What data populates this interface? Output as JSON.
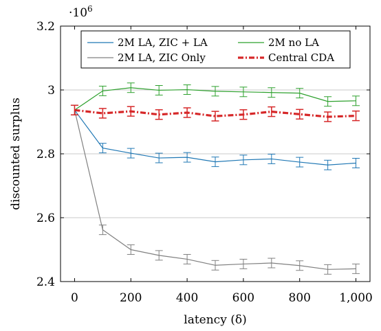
{
  "chart_data": {
    "type": "line",
    "xlabel": "latency (δ)",
    "ylabel": "discounted surplus",
    "y_scale_label": "·10",
    "y_scale_exponent": "6",
    "x_ticks": [
      0,
      200,
      400,
      600,
      800,
      1000
    ],
    "x_tick_labels": [
      "0",
      "200",
      "400",
      "600",
      "800",
      "1,000"
    ],
    "y_ticks": [
      2.4,
      2.6,
      2.8,
      3.0,
      3.2
    ],
    "y_tick_labels": [
      "2.4",
      "2.6",
      "2.8",
      "3",
      "3.2"
    ],
    "xlim": [
      -50,
      1050
    ],
    "ylim": [
      2.4,
      3.2
    ],
    "grid": "horizontal",
    "legend_position": "top",
    "x": [
      0,
      100,
      200,
      300,
      400,
      500,
      600,
      700,
      800,
      900,
      1000
    ],
    "series": [
      {
        "name": "2M LA, ZIC + LA",
        "color": "#1f77b4",
        "style": "solid",
        "values": [
          2.937,
          2.818,
          2.802,
          2.787,
          2.789,
          2.775,
          2.781,
          2.784,
          2.774,
          2.765,
          2.771
        ],
        "errors": [
          0.015,
          0.015,
          0.015,
          0.015,
          0.015,
          0.015,
          0.015,
          0.015,
          0.015,
          0.015,
          0.015
        ]
      },
      {
        "name": "2M no LA",
        "color": "#2ca02c",
        "style": "solid",
        "values": [
          2.937,
          2.997,
          3.007,
          2.999,
          3.001,
          2.996,
          2.994,
          2.992,
          2.99,
          2.964,
          2.966
        ],
        "errors": [
          0.015,
          0.015,
          0.015,
          0.015,
          0.015,
          0.015,
          0.015,
          0.015,
          0.015,
          0.015,
          0.015
        ]
      },
      {
        "name": "2M LA, ZIC Only",
        "color": "#808080",
        "style": "solid",
        "values": [
          2.937,
          2.562,
          2.5,
          2.482,
          2.47,
          2.451,
          2.455,
          2.458,
          2.45,
          2.438,
          2.44
        ],
        "errors": [
          0.015,
          0.015,
          0.015,
          0.015,
          0.015,
          0.015,
          0.015,
          0.015,
          0.015,
          0.015,
          0.015
        ]
      },
      {
        "name": "Central CDA",
        "color": "#d62728",
        "style": "dash-dot",
        "values": [
          2.937,
          2.927,
          2.933,
          2.923,
          2.929,
          2.918,
          2.923,
          2.932,
          2.924,
          2.916,
          2.919
        ],
        "errors": [
          0.015,
          0.015,
          0.015,
          0.015,
          0.015,
          0.015,
          0.015,
          0.015,
          0.015,
          0.015,
          0.015
        ]
      }
    ]
  }
}
